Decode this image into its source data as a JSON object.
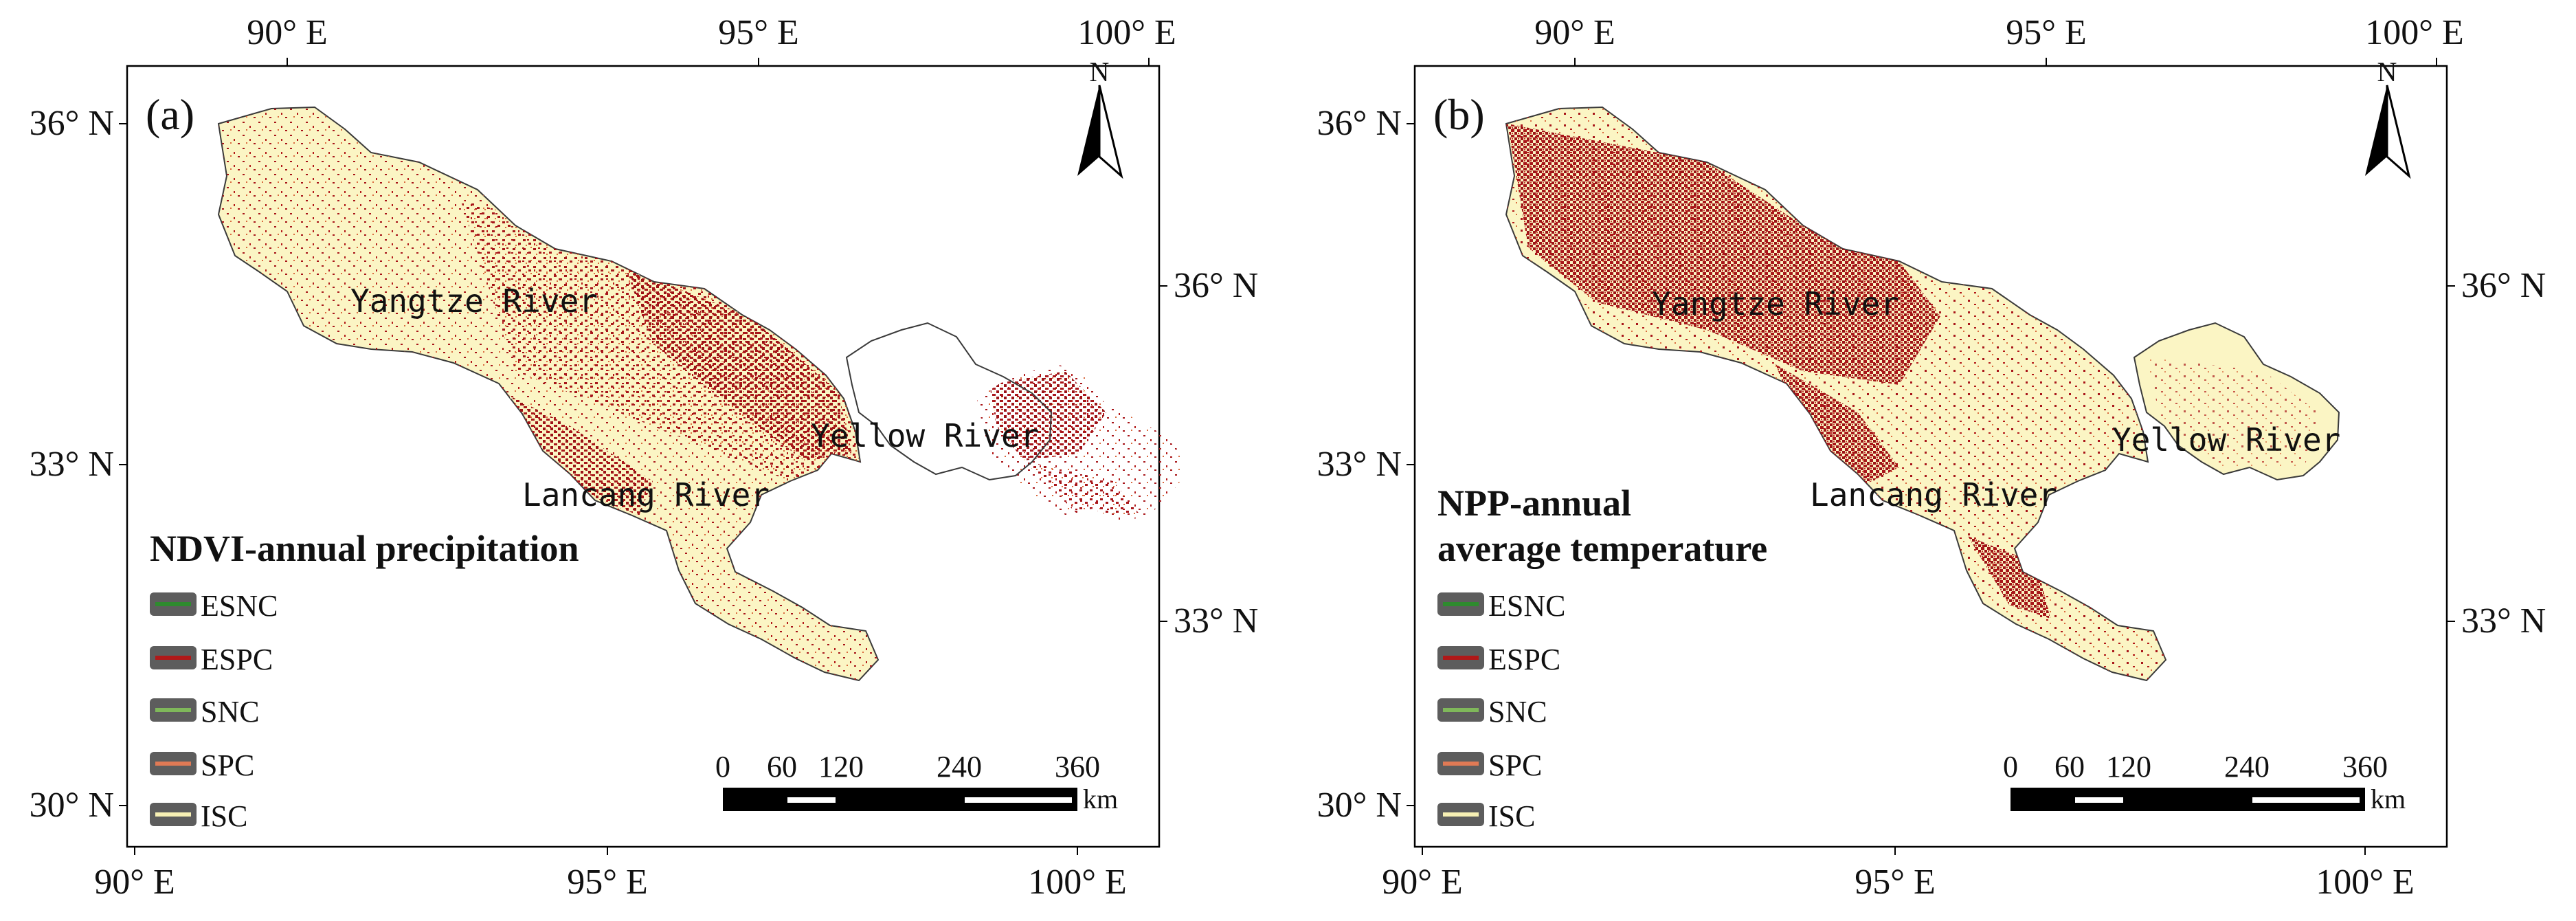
{
  "panels": [
    {
      "id": "a",
      "label": "(a)",
      "title_lines": [
        "NDVI-annual precipitation"
      ],
      "axes": {
        "top_lon": [
          "90° E",
          "95° E",
          "100° E"
        ],
        "bottom_lon": [
          "90° E",
          "95° E",
          "100° E"
        ],
        "left_lat": [
          "36° N",
          "33° N",
          "30° N"
        ],
        "right_lat": [
          "36° N",
          "33° N"
        ]
      },
      "rivers": [
        "Yangtze River",
        "Lancang River",
        "Yellow River"
      ],
      "legend": [
        "ESNC",
        "ESPC",
        "SNC",
        "SPC",
        "ISC"
      ],
      "scale_ticks": [
        "0",
        "60",
        "120",
        "240",
        "360"
      ],
      "scale_unit": "km",
      "north": "N"
    },
    {
      "id": "b",
      "label": "(b)",
      "title_lines": [
        "NPP-annual",
        "average temperature"
      ],
      "axes": {
        "top_lon": [
          "90° E",
          "95° E",
          "100° E"
        ],
        "bottom_lon": [
          "90° E",
          "95° E",
          "100° E"
        ],
        "left_lat": [
          "36° N",
          "33° N",
          "30° N"
        ],
        "right_lat": [
          "36° N",
          "33° N"
        ]
      },
      "rivers": [
        "Yangtze River",
        "Lancang River",
        "Yellow River"
      ],
      "legend": [
        "ESNC",
        "ESPC",
        "SNC",
        "SPC",
        "ISC"
      ],
      "scale_ticks": [
        "0",
        "60",
        "120",
        "240",
        "360"
      ],
      "scale_unit": "km",
      "north": "N"
    }
  ],
  "legend_colors": {
    "ESNC": "#2e8b2e",
    "ESPC": "#b01818",
    "SNC": "#7fb85a",
    "SPC": "#e07a55",
    "ISC": "#f7f0b4"
  },
  "map_colors": {
    "background": "#fbf5c4",
    "espc": "#a8161a",
    "spc": "#d9693e",
    "outline": "#3a3a3a"
  }
}
